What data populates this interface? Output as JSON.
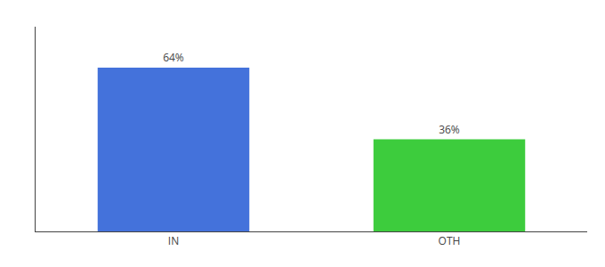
{
  "chart_data": {
    "type": "bar",
    "categories": [
      "IN",
      "OTH"
    ],
    "values": [
      64,
      36
    ],
    "value_labels": [
      "64%",
      "36%"
    ],
    "data_labels": true,
    "colors": [
      "#4472db",
      "#3dcc3d"
    ],
    "ylim": [
      0,
      80
    ],
    "yticks": [],
    "tick_labels": "x",
    "grid": false
  }
}
